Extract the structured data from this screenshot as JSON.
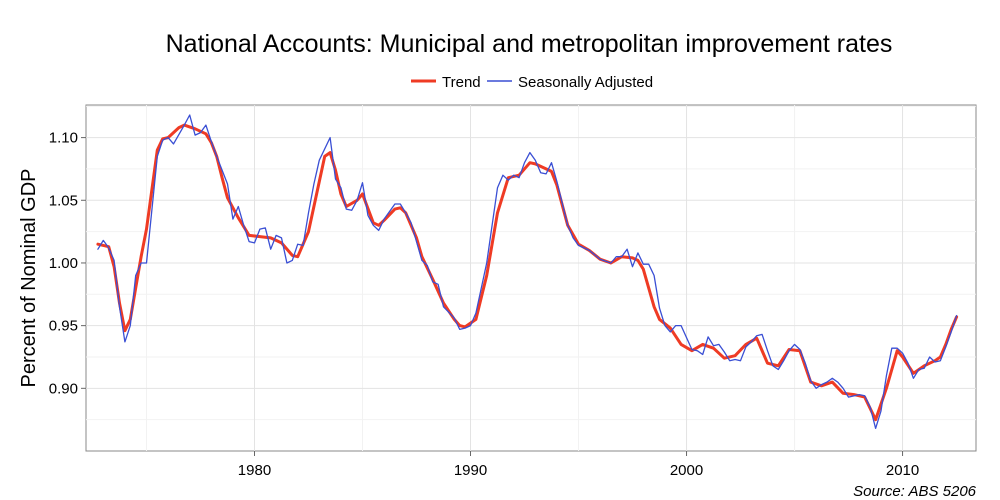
{
  "chart_data": {
    "type": "line",
    "title": "National Accounts: Municipal and metropolitan improvement rates",
    "xlabel": "",
    "ylabel": "Percent of Nominal GDP",
    "source": "Source: ABS 5206",
    "xlim": [
      1972.2,
      2013.4
    ],
    "ylim": [
      0.85,
      1.126
    ],
    "x_ticks": [
      1980,
      1990,
      2000,
      2010
    ],
    "y_ticks": [
      0.9,
      0.95,
      1.0,
      1.05,
      1.1
    ],
    "x_tick_labels": [
      "1980",
      "1990",
      "2000",
      "2010"
    ],
    "y_tick_labels": [
      "0.90",
      "0.95",
      "1.00",
      "1.05",
      "1.10"
    ],
    "grid": true,
    "legend": {
      "position": "top-center"
    },
    "series": [
      {
        "name": "Trend",
        "color": "#ef3b24",
        "points": [
          [
            1972.75,
            1.015
          ],
          [
            1973.25,
            1.013
          ],
          [
            1973.5,
            0.997
          ],
          [
            1973.75,
            0.968
          ],
          [
            1974.0,
            0.946
          ],
          [
            1974.25,
            0.955
          ],
          [
            1974.5,
            0.98
          ],
          [
            1974.75,
            1.005
          ],
          [
            1975.0,
            1.027
          ],
          [
            1975.5,
            1.09
          ],
          [
            1975.75,
            1.099
          ],
          [
            1976.0,
            1.1
          ],
          [
            1976.5,
            1.108
          ],
          [
            1976.75,
            1.11
          ],
          [
            1977.25,
            1.107
          ],
          [
            1977.75,
            1.103
          ],
          [
            1978.0,
            1.096
          ],
          [
            1978.25,
            1.085
          ],
          [
            1978.5,
            1.068
          ],
          [
            1978.75,
            1.052
          ],
          [
            1979.25,
            1.036
          ],
          [
            1979.75,
            1.022
          ],
          [
            1980.25,
            1.021
          ],
          [
            1980.75,
            1.02
          ],
          [
            1981.25,
            1.016
          ],
          [
            1981.75,
            1.006
          ],
          [
            1982.0,
            1.005
          ],
          [
            1982.5,
            1.025
          ],
          [
            1983.0,
            1.065
          ],
          [
            1983.25,
            1.085
          ],
          [
            1983.5,
            1.088
          ],
          [
            1983.75,
            1.074
          ],
          [
            1984.0,
            1.055
          ],
          [
            1984.25,
            1.045
          ],
          [
            1984.75,
            1.05
          ],
          [
            1985.0,
            1.055
          ],
          [
            1985.5,
            1.032
          ],
          [
            1985.75,
            1.03
          ],
          [
            1986.0,
            1.034
          ],
          [
            1986.5,
            1.043
          ],
          [
            1986.75,
            1.044
          ],
          [
            1987.0,
            1.04
          ],
          [
            1987.5,
            1.02
          ],
          [
            1987.75,
            1.005
          ],
          [
            1988.25,
            0.987
          ],
          [
            1988.75,
            0.968
          ],
          [
            1989.25,
            0.955
          ],
          [
            1989.5,
            0.95
          ],
          [
            1989.75,
            0.949
          ],
          [
            1990.25,
            0.955
          ],
          [
            1990.75,
            0.99
          ],
          [
            1991.25,
            1.04
          ],
          [
            1991.75,
            1.068
          ],
          [
            1992.25,
            1.07
          ],
          [
            1992.75,
            1.08
          ],
          [
            1993.0,
            1.079
          ],
          [
            1993.5,
            1.075
          ],
          [
            1993.75,
            1.073
          ],
          [
            1994.0,
            1.062
          ],
          [
            1994.5,
            1.03
          ],
          [
            1995.0,
            1.015
          ],
          [
            1995.5,
            1.01
          ],
          [
            1996.0,
            1.003
          ],
          [
            1996.5,
            1.0
          ],
          [
            1997.0,
            1.005
          ],
          [
            1997.5,
            1.004
          ],
          [
            1997.75,
            1.002
          ],
          [
            1998.0,
            0.995
          ],
          [
            1998.5,
            0.965
          ],
          [
            1998.75,
            0.955
          ],
          [
            1999.25,
            0.948
          ],
          [
            1999.75,
            0.935
          ],
          [
            2000.25,
            0.93
          ],
          [
            2000.75,
            0.935
          ],
          [
            2001.25,
            0.932
          ],
          [
            2001.75,
            0.924
          ],
          [
            2002.25,
            0.926
          ],
          [
            2002.75,
            0.935
          ],
          [
            2003.25,
            0.94
          ],
          [
            2003.75,
            0.92
          ],
          [
            2004.25,
            0.918
          ],
          [
            2004.75,
            0.931
          ],
          [
            2005.25,
            0.93
          ],
          [
            2005.75,
            0.905
          ],
          [
            2006.25,
            0.902
          ],
          [
            2006.75,
            0.905
          ],
          [
            2007.25,
            0.896
          ],
          [
            2007.75,
            0.895
          ],
          [
            2008.25,
            0.893
          ],
          [
            2008.75,
            0.875
          ],
          [
            2009.25,
            0.9
          ],
          [
            2009.75,
            0.93
          ],
          [
            2010.0,
            0.925
          ],
          [
            2010.5,
            0.912
          ],
          [
            2011.0,
            0.918
          ],
          [
            2011.5,
            0.922
          ],
          [
            2011.75,
            0.925
          ],
          [
            2012.0,
            0.935
          ],
          [
            2012.25,
            0.947
          ],
          [
            2012.5,
            0.957
          ]
        ]
      },
      {
        "name": "Seasonally Adjusted",
        "color": "#3a4fd4",
        "points": [
          [
            1972.75,
            1.011
          ],
          [
            1973.0,
            1.018
          ],
          [
            1973.25,
            1.012
          ],
          [
            1973.5,
            1.002
          ],
          [
            1973.75,
            0.965
          ],
          [
            1974.0,
            0.937
          ],
          [
            1974.25,
            0.95
          ],
          [
            1974.5,
            0.99
          ],
          [
            1974.75,
            1.0
          ],
          [
            1975.0,
            1.0
          ],
          [
            1975.5,
            1.085
          ],
          [
            1975.75,
            1.098
          ],
          [
            1976.0,
            1.1
          ],
          [
            1976.25,
            1.095
          ],
          [
            1976.75,
            1.11
          ],
          [
            1977.0,
            1.118
          ],
          [
            1977.25,
            1.102
          ],
          [
            1977.5,
            1.104
          ],
          [
            1977.75,
            1.11
          ],
          [
            1978.0,
            1.097
          ],
          [
            1978.25,
            1.085
          ],
          [
            1978.75,
            1.063
          ],
          [
            1979.0,
            1.035
          ],
          [
            1979.25,
            1.045
          ],
          [
            1979.5,
            1.03
          ],
          [
            1979.75,
            1.017
          ],
          [
            1980.0,
            1.016
          ],
          [
            1980.25,
            1.027
          ],
          [
            1980.5,
            1.028
          ],
          [
            1980.75,
            1.011
          ],
          [
            1981.0,
            1.022
          ],
          [
            1981.25,
            1.02
          ],
          [
            1981.5,
            1.0
          ],
          [
            1981.75,
            1.002
          ],
          [
            1982.0,
            1.015
          ],
          [
            1982.25,
            1.014
          ],
          [
            1982.5,
            1.04
          ],
          [
            1982.75,
            1.063
          ],
          [
            1983.0,
            1.082
          ],
          [
            1983.5,
            1.1
          ],
          [
            1983.75,
            1.067
          ],
          [
            1984.0,
            1.06
          ],
          [
            1984.25,
            1.043
          ],
          [
            1984.5,
            1.042
          ],
          [
            1984.75,
            1.05
          ],
          [
            1985.0,
            1.064
          ],
          [
            1985.25,
            1.038
          ],
          [
            1985.5,
            1.03
          ],
          [
            1985.75,
            1.026
          ],
          [
            1986.0,
            1.035
          ],
          [
            1986.5,
            1.047
          ],
          [
            1986.75,
            1.047
          ],
          [
            1987.0,
            1.04
          ],
          [
            1987.25,
            1.032
          ],
          [
            1987.75,
            1.002
          ],
          [
            1988.0,
            0.998
          ],
          [
            1988.25,
            0.985
          ],
          [
            1988.5,
            0.983
          ],
          [
            1988.75,
            0.965
          ],
          [
            1989.25,
            0.956
          ],
          [
            1989.5,
            0.947
          ],
          [
            1989.75,
            0.948
          ],
          [
            1990.0,
            0.95
          ],
          [
            1990.25,
            0.96
          ],
          [
            1990.75,
            1.0
          ],
          [
            1991.25,
            1.06
          ],
          [
            1991.5,
            1.07
          ],
          [
            1991.75,
            1.066
          ],
          [
            1992.0,
            1.07
          ],
          [
            1992.25,
            1.068
          ],
          [
            1992.5,
            1.08
          ],
          [
            1992.75,
            1.088
          ],
          [
            1993.0,
            1.082
          ],
          [
            1993.25,
            1.072
          ],
          [
            1993.5,
            1.071
          ],
          [
            1993.75,
            1.08
          ],
          [
            1994.0,
            1.065
          ],
          [
            1994.5,
            1.03
          ],
          [
            1994.75,
            1.02
          ],
          [
            1995.0,
            1.014
          ],
          [
            1995.5,
            1.01
          ],
          [
            1996.0,
            1.003
          ],
          [
            1996.5,
            1.0
          ],
          [
            1996.75,
            1.005
          ],
          [
            1997.0,
            1.005
          ],
          [
            1997.25,
            1.011
          ],
          [
            1997.5,
            0.997
          ],
          [
            1997.75,
            1.008
          ],
          [
            1998.0,
            0.999
          ],
          [
            1998.25,
            0.999
          ],
          [
            1998.5,
            0.99
          ],
          [
            1998.75,
            0.964
          ],
          [
            1999.0,
            0.95
          ],
          [
            1999.25,
            0.945
          ],
          [
            1999.5,
            0.95
          ],
          [
            1999.75,
            0.95
          ],
          [
            2000.25,
            0.931
          ],
          [
            2000.5,
            0.93
          ],
          [
            2000.75,
            0.927
          ],
          [
            2001.0,
            0.941
          ],
          [
            2001.25,
            0.934
          ],
          [
            2001.5,
            0.935
          ],
          [
            2001.75,
            0.929
          ],
          [
            2002.0,
            0.922
          ],
          [
            2002.25,
            0.923
          ],
          [
            2002.5,
            0.922
          ],
          [
            2002.75,
            0.933
          ],
          [
            2003.0,
            0.937
          ],
          [
            2003.25,
            0.942
          ],
          [
            2003.5,
            0.943
          ],
          [
            2003.75,
            0.93
          ],
          [
            2004.0,
            0.918
          ],
          [
            2004.25,
            0.915
          ],
          [
            2004.5,
            0.922
          ],
          [
            2004.75,
            0.93
          ],
          [
            2005.0,
            0.935
          ],
          [
            2005.25,
            0.931
          ],
          [
            2005.5,
            0.92
          ],
          [
            2005.75,
            0.906
          ],
          [
            2006.0,
            0.9
          ],
          [
            2006.25,
            0.903
          ],
          [
            2006.5,
            0.905
          ],
          [
            2006.75,
            0.908
          ],
          [
            2007.0,
            0.905
          ],
          [
            2007.25,
            0.9
          ],
          [
            2007.5,
            0.893
          ],
          [
            2008.0,
            0.895
          ],
          [
            2008.25,
            0.894
          ],
          [
            2008.5,
            0.885
          ],
          [
            2008.75,
            0.868
          ],
          [
            2009.0,
            0.882
          ],
          [
            2009.25,
            0.91
          ],
          [
            2009.5,
            0.932
          ],
          [
            2009.75,
            0.932
          ],
          [
            2010.0,
            0.928
          ],
          [
            2010.25,
            0.92
          ],
          [
            2010.5,
            0.908
          ],
          [
            2010.75,
            0.915
          ],
          [
            2011.0,
            0.916
          ],
          [
            2011.25,
            0.925
          ],
          [
            2011.5,
            0.921
          ],
          [
            2011.75,
            0.922
          ],
          [
            2012.0,
            0.933
          ],
          [
            2012.25,
            0.945
          ],
          [
            2012.5,
            0.958
          ]
        ]
      }
    ]
  }
}
